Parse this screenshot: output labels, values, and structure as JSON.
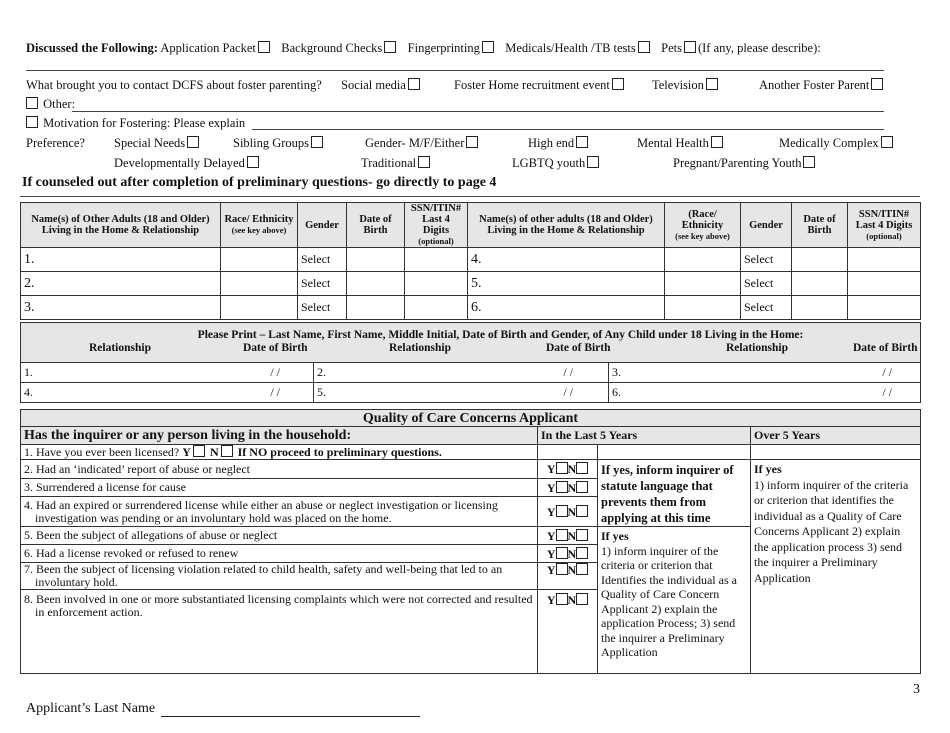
{
  "discussed": {
    "label": "Discussed the Following:",
    "items": [
      "Application Packet",
      "Background Checks",
      "Fingerprinting",
      "Medicals/Health /TB tests",
      "Pets"
    ],
    "note": "(If any, please describe):"
  },
  "contact": {
    "question": "What brought you to contact DCFS about foster parenting?",
    "options": [
      "Social media",
      "Foster Home recruitment event",
      "Television",
      "Another Foster Parent"
    ],
    "other": "Other:"
  },
  "motivation": "Motivation for Fostering: Please explain",
  "preference": {
    "label": "Preference?",
    "row1": [
      "Special Needs",
      "Sibling Groups",
      "Gender- M/F/Either",
      "High end",
      "Mental Health",
      "Medically Complex"
    ],
    "row2": [
      "Developmentally Delayed",
      "Traditional",
      "LGBTQ youth",
      "Pregnant/Parenting Youth"
    ]
  },
  "counsel_note": "If counseled out after completion of preliminary questions- go directly to page 4",
  "adults": {
    "headers": [
      "Name(s) of Other Adults (18 and Older) Living in the Home & Relationship",
      "Race/ Ethnicity",
      "(see key above)",
      "Gender",
      "Date of Birth",
      "SSN/ITIN# Last 4 Digits",
      "(optional)",
      "Name(s) of other adults (18 and Older) Living in the Home & Relationship",
      "(Race/ Ethnicity",
      "(see key above)",
      "Gender",
      "Date of Birth",
      "SSN/ITIN# Last 4 Digits",
      "(optional)"
    ],
    "rows": [
      {
        "left": "1.",
        "right": "4.",
        "gl": "Select",
        "gr": "Select"
      },
      {
        "left": "2.",
        "right": "5.",
        "gl": "Select",
        "gr": "Select"
      },
      {
        "left": "3.",
        "right": "6.",
        "gl": "Select",
        "gr": "Select"
      }
    ]
  },
  "children": {
    "title": "Please Print – Last Name, First Name, Middle Initial, Date of Birth and Gender, of Any Child under 18 Living in the Home:",
    "subheaders": [
      "Relationship",
      "Date of Birth",
      "Relationship",
      "Date of Birth",
      "Relationship",
      "Date of Birth"
    ],
    "date_placeholder": "/   /",
    "rows": [
      [
        "1.",
        "2.",
        "3."
      ],
      [
        "4.",
        "5.",
        "6."
      ]
    ]
  },
  "quality": {
    "title": "Quality of Care Concerns Applicant",
    "question_header": "Has the inquirer or any person living in the household:",
    "last5": "In the Last 5 Years",
    "over5": "Over 5 Years",
    "q1": {
      "text": "1. Have you ever been licensed?",
      "y": "Y",
      "n": "N",
      "note": "If NO proceed to preliminary questions."
    },
    "questions": [
      "2. Had an ‘indicated’ report of abuse or neglect",
      "3. Surrendered a license for cause",
      "4. Had an expired or surrendered license while either an abuse or neglect investigation or licensing investigation was pending or an involuntary hold was placed on the home.",
      "5. Been the subject of allegations of abuse or neglect",
      "6. Had a license revoked or refused to renew",
      "7. Been the subject of licensing violation related to child health, safety and well-being that led to an involuntary hold.",
      "8. Been involved in one or more substantiated licensing complaints which were not corrected and resulted in enforcement action."
    ],
    "y": "Y",
    "n": "N",
    "statute_note": "If yes, inform inquirer of statute language that prevents them from applying at this time",
    "last5_yes_title": "If yes",
    "last5_yes_text": "1) inform inquirer of the criteria or criterion that Identifies the individual as a Quality of Care Concern Applicant 2) explain the application Process; 3) send the inquirer a Preliminary Application",
    "over5_yes_title": "If yes",
    "over5_yes_text": "1) inform inquirer of the criteria or criterion that identifies the individual as a Quality of Care Concerns Applicant 2) explain the application process 3) send the inquirer a Preliminary Application"
  },
  "footer": {
    "last_name_label": "Applicant’s Last Name",
    "page_number": "3"
  }
}
